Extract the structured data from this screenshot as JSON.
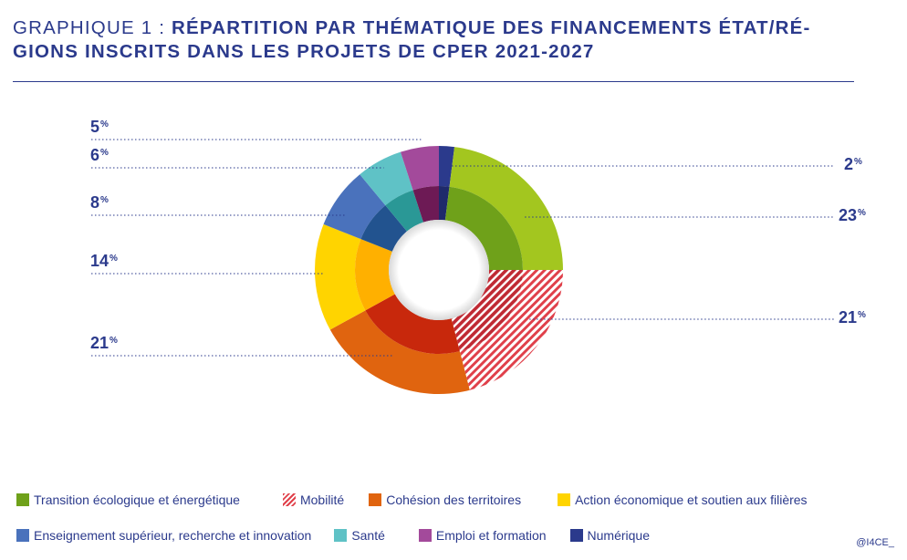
{
  "title": {
    "prefix": "GRAPHIQUE 1 : ",
    "main": "RÉPARTITION PAR THÉMATIQUE DES FINANCEMENTS ÉTAT/RÉ-GIONS INSCRITS DANS LES PROJETS DE CPER 2021-2027"
  },
  "chart_data": {
    "type": "pie",
    "variant": "donut",
    "title": "Répartition par thématique des financements État/Régions inscrits dans les projets de CPER 2021-2027",
    "unit": "%",
    "slices": [
      {
        "name": "Numérique",
        "value": 2,
        "label": "2",
        "color": "#2b3a8c",
        "inner_color": "#1f2a6b"
      },
      {
        "name": "Transition écologique et énergétique",
        "value": 23,
        "label": "23",
        "color": "#a3c61f",
        "inner_color": "#6fa11a"
      },
      {
        "name": "Mobilité",
        "value": 21,
        "label": "21",
        "color": "#e0404a",
        "inner_color": "#c02a34",
        "pattern": "hatched"
      },
      {
        "name": "Cohésion des territoires",
        "value": 21,
        "label": "21",
        "color": "#e0640f",
        "inner_color": "#c8280c"
      },
      {
        "name": "Action économique et soutien aux filières",
        "value": 14,
        "label": "14",
        "color": "#ffd400",
        "inner_color": "#ffb000"
      },
      {
        "name": "Enseignement supérieur, recherche et innovation",
        "value": 8,
        "label": "8",
        "color": "#4a72bc",
        "inner_color": "#22538f"
      },
      {
        "name": "Santé",
        "value": 6,
        "label": "6",
        "color": "#5fc2c6",
        "inner_color": "#2a9896"
      },
      {
        "name": "Emploi et formation",
        "value": 5,
        "label": "5",
        "color": "#a34a9b",
        "inner_color": "#6d1a55"
      }
    ],
    "percent_sign": "%",
    "legend": {
      "row1": [
        {
          "name": "Transition écologique et énergétique",
          "color": "#6fa11a"
        },
        {
          "name": "Mobilité",
          "color": "#e0404a",
          "pattern": "hatched"
        },
        {
          "name": "Cohésion des territoires",
          "color": "#e0640f"
        },
        {
          "name": "Action économique et soutien aux filières",
          "color": "#ffd400"
        }
      ],
      "row2": [
        {
          "name": "Enseignement supérieur, recherche et innovation",
          "color": "#4a72bc"
        },
        {
          "name": "Santé",
          "color": "#5fc2c6"
        },
        {
          "name": "Emploi et formation",
          "color": "#a34a9b"
        },
        {
          "name": "Numérique",
          "color": "#2b3a8c"
        }
      ]
    }
  },
  "credit": "@I4CE_"
}
